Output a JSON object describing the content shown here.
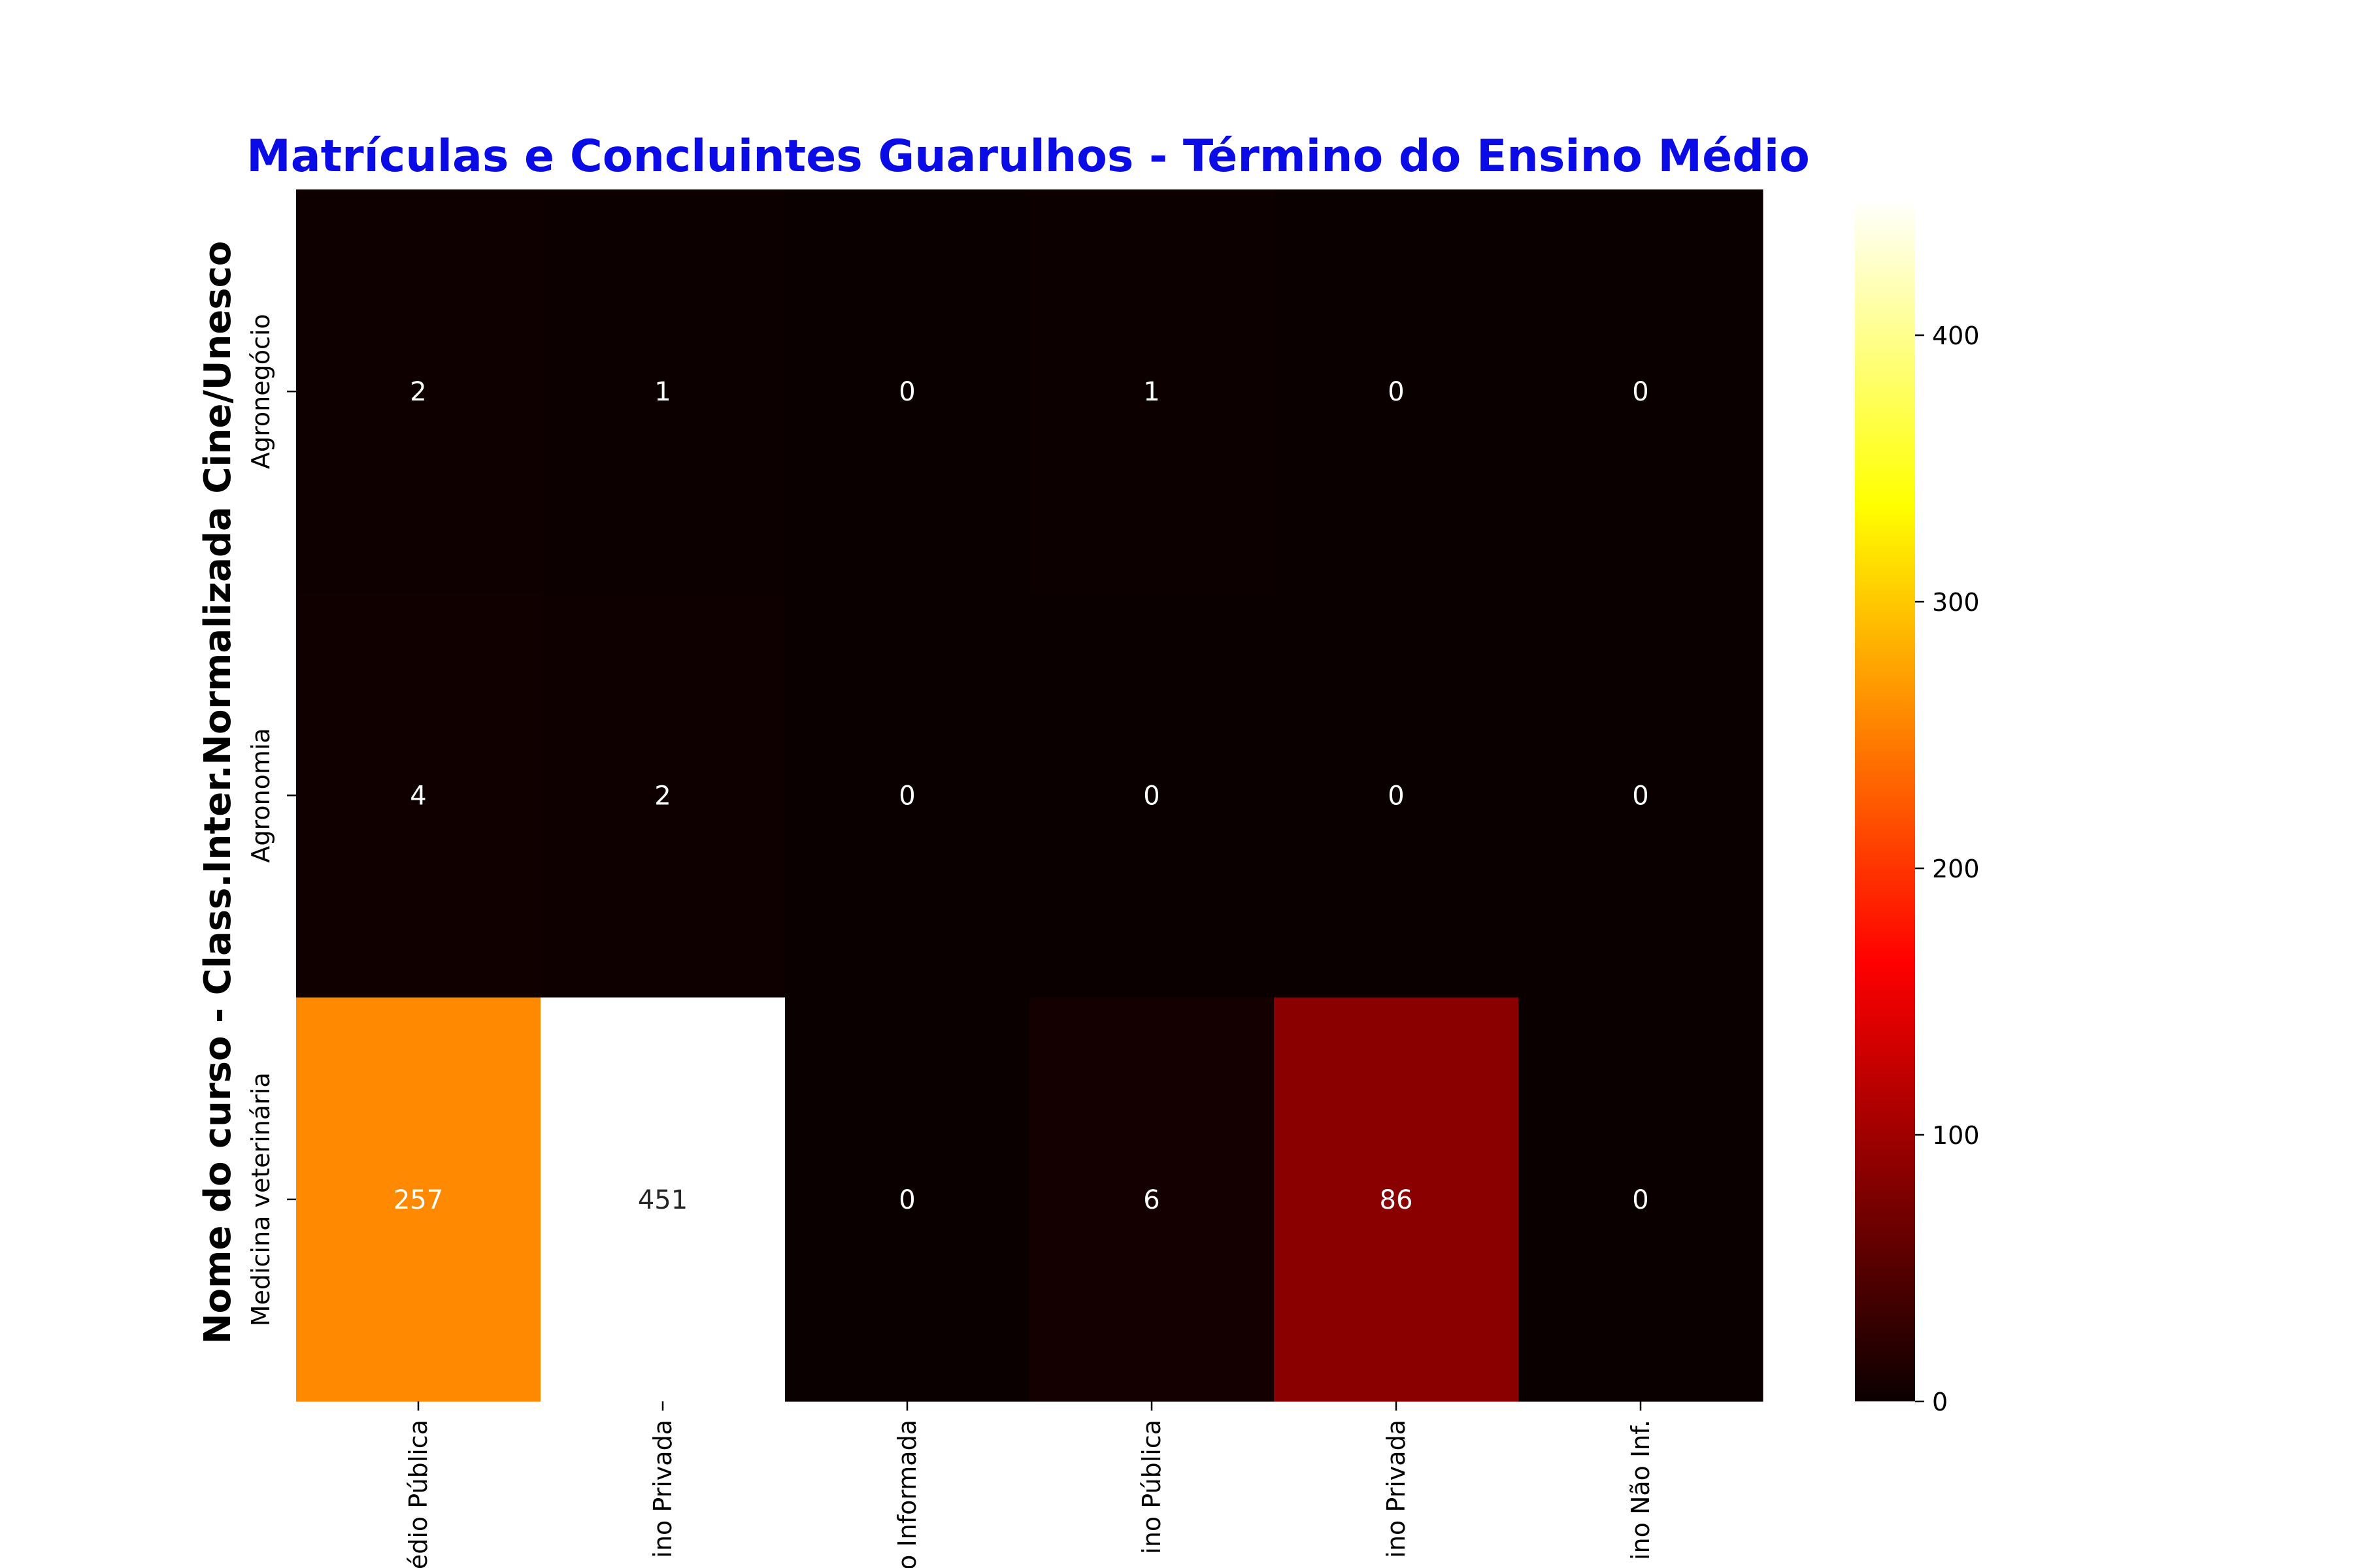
{
  "chart_data": {
    "type": "heatmap",
    "title": "Matrículas e Concluintes Guarulhos - Término do Ensino Médio",
    "xlabel": "",
    "ylabel": "Nome do curso - Class.Inter.Normalizada Cine/Unesco",
    "rows": [
      "Agronegócio",
      "Agronomia",
      "Medicina veterinária"
    ],
    "columns": [
      "édio Pública",
      "ino Privada",
      "o Informada",
      "ino Pública",
      "ino Privada",
      "ino Não Inf."
    ],
    "values": [
      [
        2,
        1,
        0,
        1,
        0,
        0
      ],
      [
        4,
        2,
        0,
        0,
        0,
        0
      ],
      [
        257,
        451,
        0,
        6,
        86,
        0
      ]
    ],
    "colormap": "hot",
    "colorbar": {
      "range": [
        0,
        451
      ],
      "ticks": [
        0,
        100,
        200,
        300,
        400
      ]
    },
    "annotations": true,
    "grid": false
  }
}
